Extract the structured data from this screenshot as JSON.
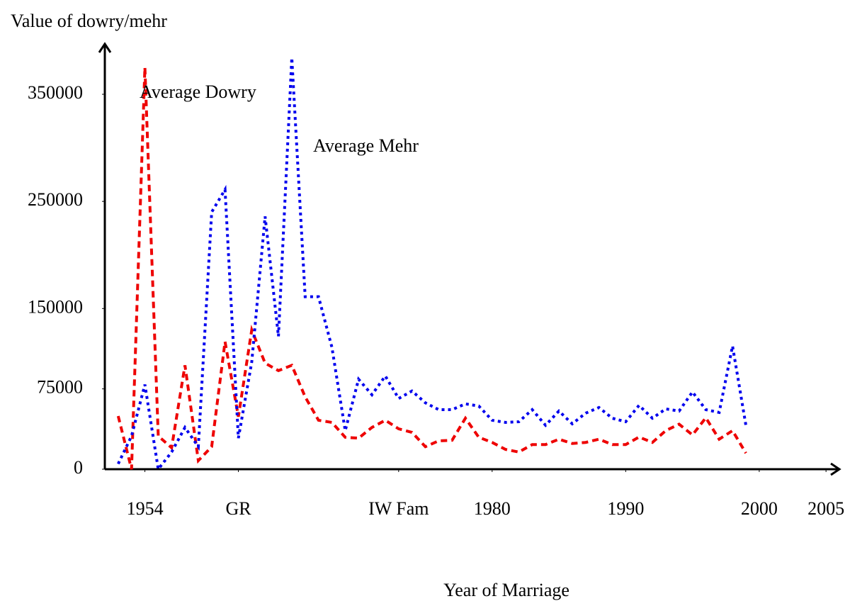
{
  "chart_data": {
    "type": "line",
    "y_label": "Value of dowry/mehr",
    "x_label": "Year of Marriage",
    "x": [
      1952,
      1953,
      1954,
      1955,
      1956,
      1957,
      1958,
      1959,
      1960,
      1961,
      1962,
      1963,
      1964,
      1965,
      1966,
      1967,
      1968,
      1969,
      1970,
      1971,
      1972,
      1973,
      1974,
      1975,
      1976,
      1977,
      1978,
      1979,
      1980,
      1981,
      1982,
      1983,
      1984,
      1985,
      1986,
      1987,
      1988,
      1989,
      1990,
      1991,
      1992,
      1993,
      1994,
      1995,
      1996,
      1997,
      1998,
      1999
    ],
    "series": [
      {
        "name": "Average Dowry",
        "color": "#ee0000",
        "style": "dashed",
        "values": [
          49600,
          0,
          375000,
          31000,
          20000,
          97000,
          8000,
          21000,
          119000,
          49000,
          130000,
          99000,
          92000,
          97000,
          67500,
          45700,
          43700,
          29800,
          29000,
          39000,
          45700,
          37700,
          34400,
          21000,
          26500,
          27000,
          47600,
          29800,
          25000,
          18500,
          16000,
          23000,
          23000,
          28000,
          24000,
          25000,
          28000,
          23000,
          23000,
          30000,
          25000,
          36000,
          42000,
          32000,
          48000,
          28000,
          36000,
          15000
        ]
      },
      {
        "name": "Average Mehr",
        "color": "#0000ee",
        "style": "dotted",
        "values": [
          5000,
          31000,
          79000,
          0,
          16000,
          39000,
          21000,
          240000,
          261000,
          29000,
          100000,
          236000,
          124000,
          384000,
          161000,
          161000,
          114000,
          36000,
          84000,
          69500,
          87000,
          66000,
          73000,
          62000,
          55600,
          55600,
          61000,
          59000,
          45700,
          43700,
          44300,
          55600,
          41000,
          54300,
          42400,
          52300,
          57600,
          47600,
          44300,
          59600,
          47600,
          56300,
          54300,
          72100,
          55600,
          53000,
          115000,
          41000
        ]
      }
    ],
    "xlim": [
      1951,
      2006
    ],
    "ylim": [
      0,
      397000
    ],
    "xticks": [
      {
        "value": 1954,
        "label": "1954"
      },
      {
        "value": 1961,
        "label": "GR"
      },
      {
        "value": 1973,
        "label": "IW Fam"
      },
      1980,
      1990,
      2000,
      2005
    ],
    "yticks": [
      0,
      75000,
      150000,
      250000,
      350000
    ],
    "grid": false
  }
}
